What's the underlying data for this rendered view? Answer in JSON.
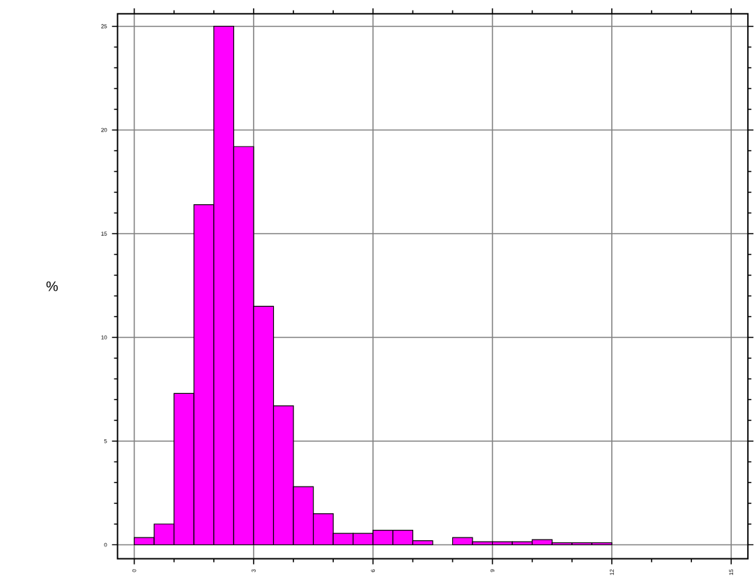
{
  "chart_data": {
    "type": "histogram",
    "ylabel": "%",
    "color": "#ff00ff",
    "bins": [
      0,
      0.5,
      1,
      1.5,
      2,
      2.5,
      3,
      3.5,
      4,
      4.5,
      5,
      5.5,
      6,
      6.5,
      7,
      7.5,
      8,
      8.5,
      9,
      9.5,
      10,
      10.5,
      11,
      11.5,
      12,
      12.5,
      13,
      13.5,
      14
    ],
    "values": [
      0.35,
      1.0,
      7.3,
      16.4,
      25,
      19.2,
      11.5,
      6.7,
      2.8,
      1.5,
      0.55,
      0.55,
      0.7,
      0.7,
      0.2,
      0,
      0.35,
      0.15,
      0.15,
      0.15,
      0.25,
      0.1,
      0.1,
      0.1,
      0,
      0,
      0,
      0
    ],
    "xlim": [
      -0.42,
      15.42
    ],
    "ylim": [
      -0.67,
      25.6
    ],
    "xticks": [
      0,
      3,
      6,
      9,
      12,
      15
    ],
    "yticks": [
      0,
      5,
      10,
      15,
      20,
      25
    ],
    "grid": true
  }
}
